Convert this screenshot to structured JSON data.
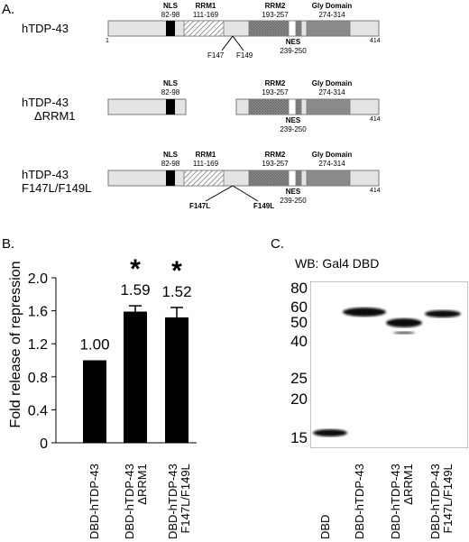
{
  "panelA": {
    "letter": "A.",
    "constructs": [
      {
        "name": [
          "hTDP-43"
        ],
        "length": "414",
        "start": "1",
        "domains": {
          "nls": {
            "name": "NLS",
            "range": "82-98"
          },
          "rrm1": {
            "name": "RRM1",
            "range": "111-169"
          },
          "rrm2": {
            "name": "RRM2",
            "range": "193-257"
          },
          "nes": {
            "name": "NES",
            "range": "239-250"
          },
          "gly": {
            "name": "Gly Domain",
            "range": "274-314"
          }
        },
        "mutations": [
          "F147",
          "F149"
        ]
      },
      {
        "name": [
          "hTDP-43",
          "ΔRRM1"
        ],
        "length": "414",
        "domains": {
          "nls": {
            "name": "NLS",
            "range": "82-98"
          },
          "rrm2": {
            "name": "RRM2",
            "range": "193-257"
          },
          "nes": {
            "name": "NES",
            "range": "239-250"
          },
          "gly": {
            "name": "Gly Domain",
            "range": "274-314"
          }
        }
      },
      {
        "name": [
          "hTDP-43",
          "F147L/F149L"
        ],
        "length": "414",
        "domains": {
          "nls": {
            "name": "NLS",
            "range": "82-98"
          },
          "rrm1": {
            "name": "RRM1",
            "range": "111-169"
          },
          "rrm2": {
            "name": "RRM2",
            "range": "193-257"
          },
          "nes": {
            "name": "NES",
            "range": "239-250"
          },
          "gly": {
            "name": "Gly Domain",
            "range": "274-314"
          }
        },
        "mutations": [
          "F147L",
          "F149L"
        ]
      }
    ]
  },
  "panelB": {
    "letter": "B.",
    "chart_data": {
      "type": "bar",
      "categories": [
        [
          "DBD-hTDP-43"
        ],
        [
          "DBD-hTDP-43",
          "ΔRRM1"
        ],
        [
          "DBD-hTDP-43",
          "F147L/F149L"
        ]
      ],
      "values": [
        1.0,
        1.59,
        1.52
      ],
      "value_labels": [
        "1.00",
        "1.59",
        "1.52"
      ],
      "errors": [
        0.0,
        0.07,
        0.12
      ],
      "significance": [
        "",
        "*",
        "*"
      ],
      "ylabel": "Fold release of repression",
      "ylim": [
        0,
        2.0
      ],
      "yticks": [
        "0",
        "0.4",
        "0.8",
        "1.2",
        "1.6",
        "2.0"
      ],
      "colors": {
        "bar": "#000000"
      }
    }
  },
  "panelC": {
    "letter": "C.",
    "title": "WB: Gal4 DBD",
    "markers": [
      "80",
      "60",
      "50",
      "40",
      "25",
      "20",
      "15"
    ],
    "lanes": [
      [
        "DBD"
      ],
      [
        "DBD-hTDP-43"
      ],
      [
        "DBD-hTDP-43",
        "ΔRRM1"
      ],
      [
        "DBD-hTDP-43",
        "F147L/F149L"
      ]
    ]
  }
}
